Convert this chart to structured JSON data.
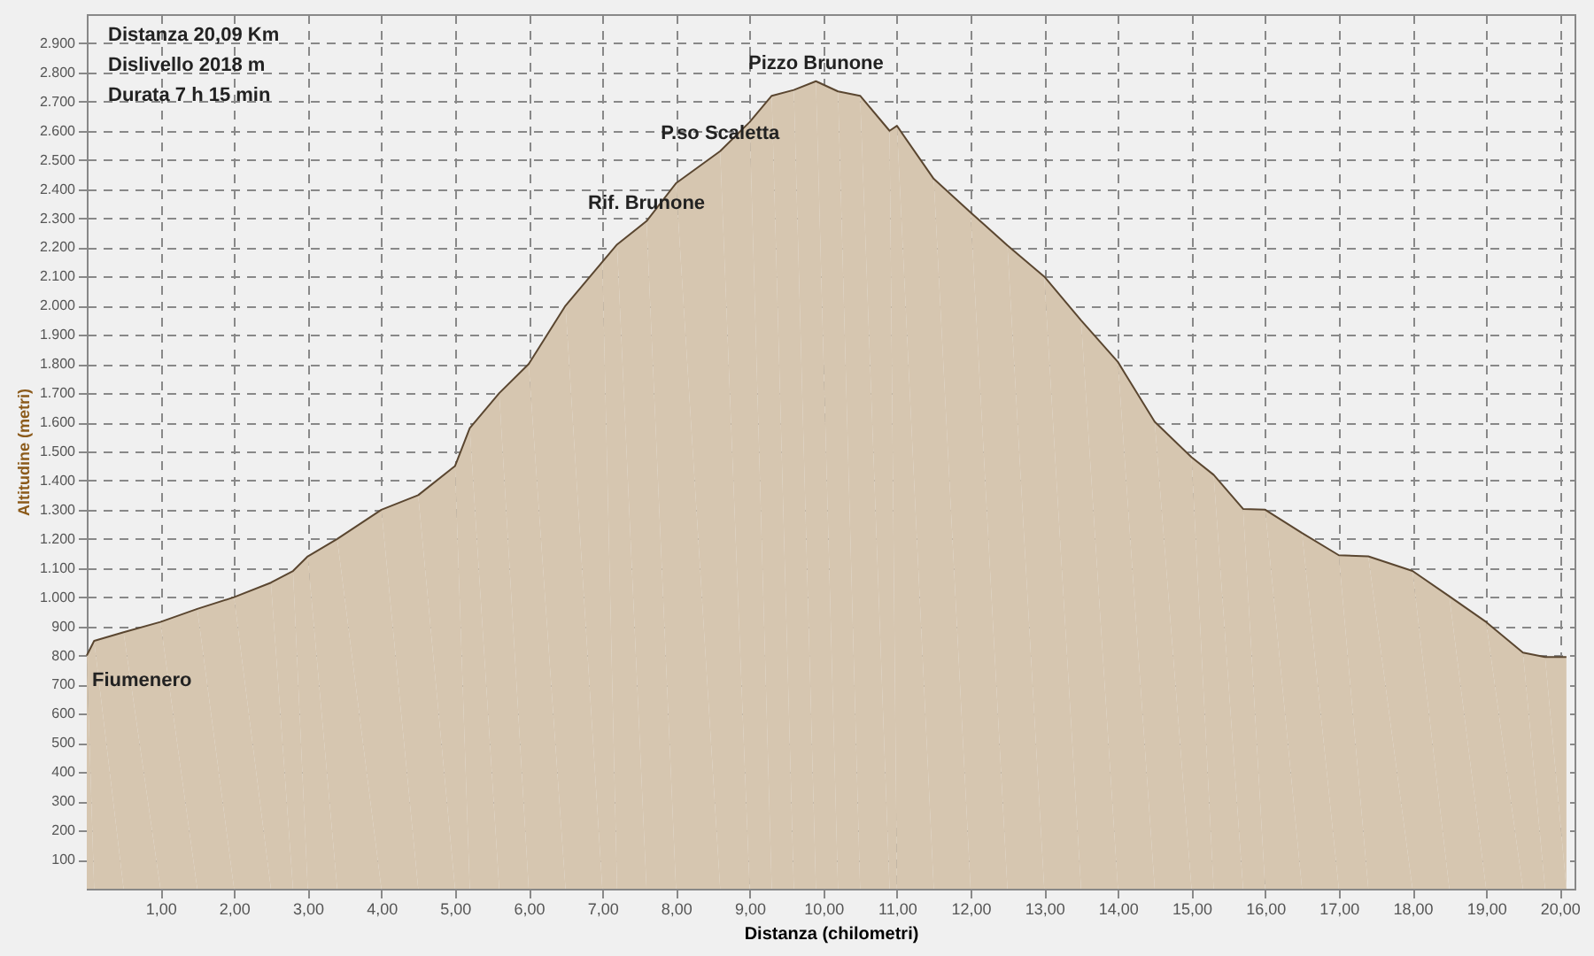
{
  "chart_data": {
    "type": "area",
    "xlabel": "Distanza (chilometri)",
    "ylabel": "Altitudine (metri)",
    "x": [
      0,
      0.1,
      0.5,
      1.0,
      1.5,
      2.0,
      2.5,
      2.8,
      3.0,
      3.4,
      4.0,
      4.5,
      5.0,
      5.2,
      5.6,
      6.0,
      6.5,
      7.0,
      7.2,
      7.6,
      8.0,
      8.6,
      9.0,
      9.3,
      9.6,
      9.9,
      10.2,
      10.5,
      10.9,
      11.0,
      11.5,
      12.0,
      12.5,
      13.0,
      13.5,
      14.0,
      14.5,
      15.0,
      15.3,
      15.7,
      16.0,
      16.5,
      17.0,
      17.4,
      18.0,
      18.5,
      19.0,
      19.5,
      19.8,
      20.09
    ],
    "series": [
      {
        "color": "#d6c6b0",
        "values": [
          800,
          850,
          880,
          915,
          960,
          1000,
          1050,
          1090,
          1140,
          1200,
          1300,
          1350,
          1450,
          1580,
          1700,
          1800,
          2000,
          2150,
          2210,
          2290,
          2420,
          2530,
          2630,
          2720,
          2740,
          2770,
          2735,
          2720,
          2600,
          2617,
          2435,
          2320,
          2207,
          2100,
          1950,
          1807,
          1602,
          1480,
          1420,
          1303,
          1300,
          1220,
          1144,
          1140,
          1090,
          1003,
          915,
          810,
          795,
          795
        ]
      }
    ],
    "xlim": [
      0,
      20.2
    ],
    "ylim": [
      0,
      3000
    ],
    "xticks": [
      {
        "value": 1,
        "label": "1,00"
      },
      {
        "value": 2,
        "label": "2,00"
      },
      {
        "value": 3,
        "label": "3,00"
      },
      {
        "value": 4,
        "label": "4,00"
      },
      {
        "value": 5,
        "label": "5,00"
      },
      {
        "value": 6,
        "label": "6,00"
      },
      {
        "value": 7,
        "label": "7,00"
      },
      {
        "value": 8,
        "label": "8,00"
      },
      {
        "value": 9,
        "label": "9,00"
      },
      {
        "value": 10,
        "label": "10,00"
      },
      {
        "value": 11,
        "label": "11,00"
      },
      {
        "value": 12,
        "label": "12,00"
      },
      {
        "value": 13,
        "label": "13,00"
      },
      {
        "value": 14,
        "label": "14,00"
      },
      {
        "value": 15,
        "label": "15,00"
      },
      {
        "value": 16,
        "label": "16,00"
      },
      {
        "value": 17,
        "label": "17,00"
      },
      {
        "value": 18,
        "label": "18,00"
      },
      {
        "value": 19,
        "label": "19,00"
      },
      {
        "value": 20,
        "label": "20,00"
      }
    ],
    "yticks": [
      100,
      200,
      300,
      400,
      500,
      600,
      700,
      800,
      900,
      {
        "value": 1000,
        "label": "1.000"
      },
      {
        "value": 1100,
        "label": "1.100"
      },
      {
        "value": 1200,
        "label": "1.200"
      },
      {
        "value": 1300,
        "label": "1.300"
      },
      {
        "value": 1400,
        "label": "1.400"
      },
      {
        "value": 1500,
        "label": "1.500"
      },
      {
        "value": 1600,
        "label": "1.600"
      },
      {
        "value": 1700,
        "label": "1.700"
      },
      {
        "value": 1800,
        "label": "1.800"
      },
      {
        "value": 1900,
        "label": "1.900"
      },
      {
        "value": 2000,
        "label": "2.000"
      },
      {
        "value": 2100,
        "label": "2.100"
      },
      {
        "value": 2200,
        "label": "2.200"
      },
      {
        "value": 2300,
        "label": "2.300"
      },
      {
        "value": 2400,
        "label": "2.400"
      },
      {
        "value": 2500,
        "label": "2.500"
      },
      {
        "value": 2600,
        "label": "2.600"
      },
      {
        "value": 2700,
        "label": "2.700"
      },
      {
        "value": 2800,
        "label": "2.800"
      },
      {
        "value": 2900,
        "label": "2.900"
      }
    ],
    "grid": true,
    "line_style": "solid",
    "annotations": [
      "Distanza   20,09 Km",
      "Dislivello  2018 m",
      "Durata      7 h  15 min",
      {
        "text": "Pizzo Brunone",
        "x": 9.9,
        "y": 2770
      },
      {
        "text": "P.so Scaletta",
        "x": 8.6,
        "y": 2530
      },
      {
        "text": "Rif. Brunone",
        "x": 7.6,
        "y": 2290
      },
      {
        "text": "Fiumenero",
        "x": 0,
        "y": 800
      }
    ]
  }
}
